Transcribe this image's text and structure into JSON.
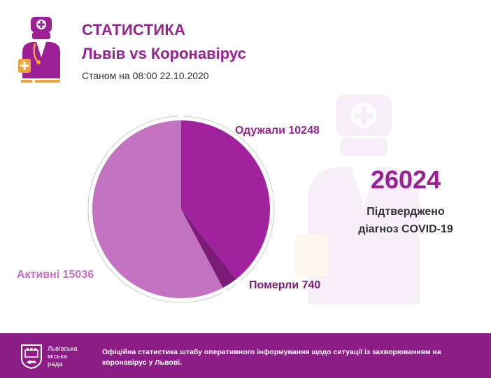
{
  "header": {
    "title": "СТАТИСТИКА",
    "subtitle": "Львів vs Коронавірус",
    "date_line": "Станом на 08:00 22.10.2020"
  },
  "total": {
    "value": "26024",
    "label_line1": "Підтверджено",
    "label_line2": "діагноз COVID-19"
  },
  "chart_data": {
    "type": "pie",
    "categories": [
      "Одужали",
      "Померли",
      "Активні"
    ],
    "values": [
      10248,
      740,
      15036
    ],
    "labels": [
      "Одужали 10248",
      "Померли 740",
      "Активні 15036"
    ],
    "colors": [
      "#a0229c",
      "#7d1b78",
      "#c371c1"
    ]
  },
  "footer": {
    "org_line1": "Львівська",
    "org_line2": "міська",
    "org_line3": "рада",
    "text": "Офіційна статистика штабу оперативного інформування щодо ситуації із захворюванням на коронавірус у Львові."
  },
  "colors": {
    "accent": "#9b1f95",
    "footer_bg": "#8d1d86",
    "orange": "#f0a33a"
  },
  "icons": [
    "doctor-icon",
    "doctor-watermark-icon",
    "lviv-coat-of-arms-icon"
  ]
}
